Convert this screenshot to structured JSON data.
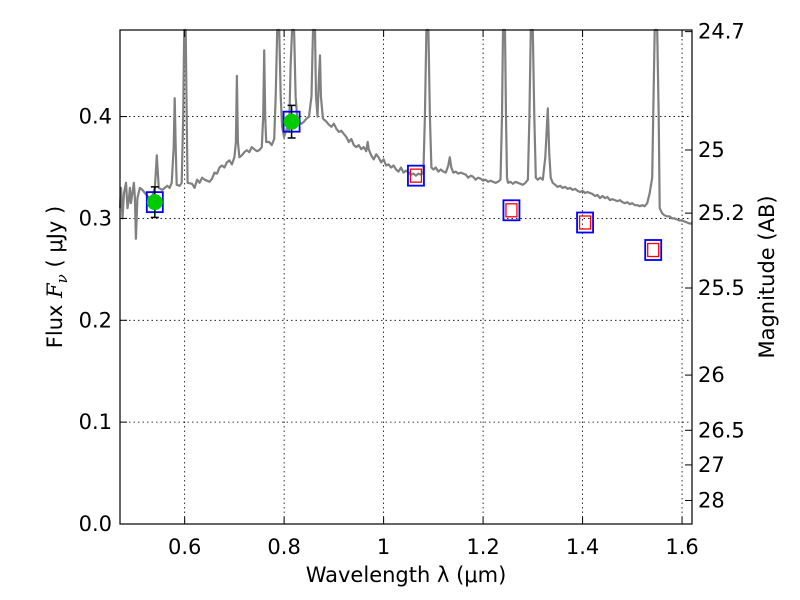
{
  "chart_data": {
    "type": "scatter",
    "title": "",
    "xlabel": "Wavelength  λ (μm)",
    "ylabel": "Flux  F_ν  ( μJy )",
    "ylabel_right": "Magnitude (AB)",
    "xlim": [
      0.47,
      1.62
    ],
    "ylim": [
      0.0,
      0.485
    ],
    "grid": true,
    "x_ticks": [
      {
        "v": 0.6,
        "label": "0.6"
      },
      {
        "v": 0.8,
        "label": "0.8"
      },
      {
        "v": 1.0,
        "label": "1"
      },
      {
        "v": 1.2,
        "label": "1.2"
      },
      {
        "v": 1.4,
        "label": "1.4"
      },
      {
        "v": 1.6,
        "label": "1.6"
      }
    ],
    "y_ticks": [
      {
        "v": 0.0,
        "label": "0.0"
      },
      {
        "v": 0.1,
        "label": "0.1"
      },
      {
        "v": 0.2,
        "label": "0.2"
      },
      {
        "v": 0.3,
        "label": "0.3"
      },
      {
        "v": 0.4,
        "label": "0.4"
      }
    ],
    "y2_ticks": [
      {
        "label": "24.7",
        "flux": 0.4834
      },
      {
        "label": "25",
        "flux": 0.3672
      },
      {
        "label": "25.2",
        "flux": 0.3052
      },
      {
        "label": "25.5",
        "flux": 0.2317
      },
      {
        "label": "26",
        "flux": 0.1462
      },
      {
        "label": "26.5",
        "flux": 0.092
      },
      {
        "label": "27",
        "flux": 0.058
      },
      {
        "label": "28",
        "flux": 0.0231
      }
    ],
    "series": [
      {
        "kind": "line",
        "color": "#808080",
        "points": [
          [
            0.47,
            0.31
          ],
          [
            0.472,
            0.33
          ],
          [
            0.475,
            0.3
          ],
          [
            0.478,
            0.325
          ],
          [
            0.482,
            0.335
          ],
          [
            0.485,
            0.31
          ],
          [
            0.488,
            0.32
          ],
          [
            0.49,
            0.33
          ],
          [
            0.492,
            0.315
          ],
          [
            0.495,
            0.325
          ],
          [
            0.498,
            0.335
          ],
          [
            0.5,
            0.32
          ],
          [
            0.502,
            0.28
          ],
          [
            0.505,
            0.32
          ],
          [
            0.51,
            0.33
          ],
          [
            0.515,
            0.328
          ],
          [
            0.52,
            0.325
          ],
          [
            0.525,
            0.322
          ],
          [
            0.53,
            0.32
          ],
          [
            0.535,
            0.322
          ],
          [
            0.54,
            0.33
          ],
          [
            0.542,
            0.345
          ],
          [
            0.544,
            0.362
          ],
          [
            0.546,
            0.345
          ],
          [
            0.548,
            0.33
          ],
          [
            0.555,
            0.328
          ],
          [
            0.56,
            0.33
          ],
          [
            0.565,
            0.332
          ],
          [
            0.57,
            0.33
          ],
          [
            0.574,
            0.335
          ],
          [
            0.578,
            0.37
          ],
          [
            0.58,
            0.418
          ],
          [
            0.582,
            0.37
          ],
          [
            0.584,
            0.333
          ],
          [
            0.59,
            0.332
          ],
          [
            0.594,
            0.335
          ],
          [
            0.597,
            0.4
          ],
          [
            0.599,
            0.485
          ],
          [
            0.602,
            0.485
          ],
          [
            0.604,
            0.4
          ],
          [
            0.606,
            0.335
          ],
          [
            0.615,
            0.334
          ],
          [
            0.62,
            0.33
          ],
          [
            0.625,
            0.338
          ],
          [
            0.63,
            0.335
          ],
          [
            0.635,
            0.34
          ],
          [
            0.64,
            0.338
          ],
          [
            0.645,
            0.337
          ],
          [
            0.65,
            0.336
          ],
          [
            0.655,
            0.339
          ],
          [
            0.66,
            0.345
          ],
          [
            0.665,
            0.344
          ],
          [
            0.67,
            0.35
          ],
          [
            0.675,
            0.352
          ],
          [
            0.68,
            0.35
          ],
          [
            0.685,
            0.355
          ],
          [
            0.69,
            0.357
          ],
          [
            0.695,
            0.353
          ],
          [
            0.7,
            0.36
          ],
          [
            0.703,
            0.375
          ],
          [
            0.705,
            0.44
          ],
          [
            0.707,
            0.375
          ],
          [
            0.71,
            0.36
          ],
          [
            0.715,
            0.362
          ],
          [
            0.72,
            0.365
          ],
          [
            0.725,
            0.367
          ],
          [
            0.73,
            0.365
          ],
          [
            0.735,
            0.37
          ],
          [
            0.74,
            0.368
          ],
          [
            0.745,
            0.366
          ],
          [
            0.75,
            0.367
          ],
          [
            0.755,
            0.37
          ],
          [
            0.758,
            0.4
          ],
          [
            0.76,
            0.465
          ],
          [
            0.762,
            0.4
          ],
          [
            0.764,
            0.375
          ],
          [
            0.77,
            0.375
          ],
          [
            0.775,
            0.372
          ],
          [
            0.78,
            0.378
          ],
          [
            0.783,
            0.42
          ],
          [
            0.786,
            0.485
          ],
          [
            0.79,
            0.485
          ],
          [
            0.793,
            0.42
          ],
          [
            0.796,
            0.39
          ],
          [
            0.8,
            0.38
          ],
          [
            0.805,
            0.388
          ],
          [
            0.81,
            0.385
          ],
          [
            0.813,
            0.45
          ],
          [
            0.816,
            0.485
          ],
          [
            0.82,
            0.485
          ],
          [
            0.823,
            0.42
          ],
          [
            0.826,
            0.4
          ],
          [
            0.83,
            0.395
          ],
          [
            0.835,
            0.393
          ],
          [
            0.84,
            0.395
          ],
          [
            0.845,
            0.398
          ],
          [
            0.85,
            0.4
          ],
          [
            0.855,
            0.42
          ],
          [
            0.858,
            0.485
          ],
          [
            0.862,
            0.485
          ],
          [
            0.864,
            0.42
          ],
          [
            0.867,
            0.4
          ],
          [
            0.87,
            0.44
          ],
          [
            0.872,
            0.46
          ],
          [
            0.874,
            0.42
          ],
          [
            0.878,
            0.398
          ],
          [
            0.885,
            0.395
          ],
          [
            0.89,
            0.392
          ],
          [
            0.895,
            0.39
          ],
          [
            0.9,
            0.393
          ],
          [
            0.905,
            0.388
          ],
          [
            0.91,
            0.385
          ],
          [
            0.915,
            0.386
          ],
          [
            0.92,
            0.383
          ],
          [
            0.925,
            0.38
          ],
          [
            0.93,
            0.375
          ],
          [
            0.935,
            0.378
          ],
          [
            0.94,
            0.372
          ],
          [
            0.945,
            0.37
          ],
          [
            0.95,
            0.372
          ],
          [
            0.955,
            0.368
          ],
          [
            0.96,
            0.37
          ],
          [
            0.965,
            0.366
          ],
          [
            0.968,
            0.375
          ],
          [
            0.97,
            0.368
          ],
          [
            0.975,
            0.362
          ],
          [
            0.98,
            0.358
          ],
          [
            0.985,
            0.363
          ],
          [
            0.99,
            0.36
          ],
          [
            0.995,
            0.355
          ],
          [
            1.0,
            0.358
          ],
          [
            1.005,
            0.352
          ],
          [
            1.01,
            0.353
          ],
          [
            1.015,
            0.35
          ],
          [
            1.02,
            0.352
          ],
          [
            1.025,
            0.348
          ],
          [
            1.03,
            0.346
          ],
          [
            1.035,
            0.35
          ],
          [
            1.04,
            0.345
          ],
          [
            1.045,
            0.347
          ],
          [
            1.05,
            0.345
          ],
          [
            1.055,
            0.343
          ],
          [
            1.06,
            0.344
          ],
          [
            1.065,
            0.342
          ],
          [
            1.07,
            0.344
          ],
          [
            1.075,
            0.343
          ],
          [
            1.08,
            0.345
          ],
          [
            1.083,
            0.4
          ],
          [
            1.086,
            0.485
          ],
          [
            1.09,
            0.485
          ],
          [
            1.093,
            0.4
          ],
          [
            1.096,
            0.35
          ],
          [
            1.1,
            0.348
          ],
          [
            1.105,
            0.35
          ],
          [
            1.11,
            0.346
          ],
          [
            1.115,
            0.348
          ],
          [
            1.12,
            0.346
          ],
          [
            1.125,
            0.345
          ],
          [
            1.13,
            0.352
          ],
          [
            1.133,
            0.36
          ],
          [
            1.136,
            0.35
          ],
          [
            1.14,
            0.345
          ],
          [
            1.145,
            0.346
          ],
          [
            1.15,
            0.344
          ],
          [
            1.155,
            0.345
          ],
          [
            1.16,
            0.344
          ],
          [
            1.165,
            0.343
          ],
          [
            1.17,
            0.34
          ],
          [
            1.175,
            0.342
          ],
          [
            1.18,
            0.341
          ],
          [
            1.185,
            0.338
          ],
          [
            1.19,
            0.34
          ],
          [
            1.195,
            0.339
          ],
          [
            1.2,
            0.337
          ],
          [
            1.205,
            0.338
          ],
          [
            1.21,
            0.336
          ],
          [
            1.215,
            0.337
          ],
          [
            1.22,
            0.336
          ],
          [
            1.225,
            0.335
          ],
          [
            1.23,
            0.336
          ],
          [
            1.235,
            0.338
          ],
          [
            1.238,
            0.4
          ],
          [
            1.24,
            0.485
          ],
          [
            1.244,
            0.485
          ],
          [
            1.246,
            0.4
          ],
          [
            1.248,
            0.34
          ],
          [
            1.25,
            0.335
          ],
          [
            1.255,
            0.336
          ],
          [
            1.26,
            0.334
          ],
          [
            1.265,
            0.336
          ],
          [
            1.27,
            0.335
          ],
          [
            1.275,
            0.334
          ],
          [
            1.28,
            0.333
          ],
          [
            1.285,
            0.335
          ],
          [
            1.29,
            0.338
          ],
          [
            1.293,
            0.4
          ],
          [
            1.296,
            0.485
          ],
          [
            1.3,
            0.485
          ],
          [
            1.303,
            0.4
          ],
          [
            1.306,
            0.34
          ],
          [
            1.31,
            0.338
          ],
          [
            1.315,
            0.34
          ],
          [
            1.32,
            0.338
          ],
          [
            1.325,
            0.36
          ],
          [
            1.33,
            0.408
          ],
          [
            1.333,
            0.365
          ],
          [
            1.336,
            0.34
          ],
          [
            1.34,
            0.335
          ],
          [
            1.345,
            0.333
          ],
          [
            1.35,
            0.331
          ],
          [
            1.355,
            0.332
          ],
          [
            1.36,
            0.33
          ],
          [
            1.365,
            0.331
          ],
          [
            1.37,
            0.329
          ],
          [
            1.375,
            0.33
          ],
          [
            1.38,
            0.328
          ],
          [
            1.385,
            0.329
          ],
          [
            1.39,
            0.327
          ],
          [
            1.395,
            0.326
          ],
          [
            1.4,
            0.327
          ],
          [
            1.405,
            0.325
          ],
          [
            1.41,
            0.326
          ],
          [
            1.415,
            0.325
          ],
          [
            1.42,
            0.324
          ],
          [
            1.425,
            0.322
          ],
          [
            1.43,
            0.323
          ],
          [
            1.435,
            0.32
          ],
          [
            1.44,
            0.322
          ],
          [
            1.445,
            0.32
          ],
          [
            1.45,
            0.321
          ],
          [
            1.455,
            0.318
          ],
          [
            1.46,
            0.319
          ],
          [
            1.465,
            0.318
          ],
          [
            1.47,
            0.317
          ],
          [
            1.475,
            0.318
          ],
          [
            1.48,
            0.316
          ],
          [
            1.485,
            0.315
          ],
          [
            1.49,
            0.316
          ],
          [
            1.495,
            0.314
          ],
          [
            1.5,
            0.315
          ],
          [
            1.505,
            0.313
          ],
          [
            1.51,
            0.313
          ],
          [
            1.515,
            0.312
          ],
          [
            1.52,
            0.313
          ],
          [
            1.525,
            0.312
          ],
          [
            1.53,
            0.315
          ],
          [
            1.535,
            0.325
          ],
          [
            1.54,
            0.34
          ],
          [
            1.542,
            0.4
          ],
          [
            1.545,
            0.485
          ],
          [
            1.55,
            0.485
          ],
          [
            1.553,
            0.4
          ],
          [
            1.555,
            0.31
          ],
          [
            1.56,
            0.305
          ],
          [
            1.565,
            0.303
          ],
          [
            1.57,
            0.302
          ],
          [
            1.575,
            0.302
          ],
          [
            1.58,
            0.3
          ],
          [
            1.585,
            0.3
          ],
          [
            1.59,
            0.299
          ],
          [
            1.595,
            0.298
          ],
          [
            1.6,
            0.298
          ],
          [
            1.605,
            0.297
          ],
          [
            1.61,
            0.296
          ],
          [
            1.615,
            0.295
          ],
          [
            1.62,
            0.295
          ]
        ]
      },
      {
        "kind": "model_boxes",
        "edge_color": "#0000ff",
        "points": [
          {
            "x": 0.54,
            "y": 0.316
          },
          {
            "x": 0.815,
            "y": 0.395
          }
        ]
      },
      {
        "kind": "model_boxes_double",
        "outer_color": "#0000ff",
        "inner_color": "#ff0000",
        "points": [
          {
            "x": 1.065,
            "y": 0.342
          },
          {
            "x": 1.257,
            "y": 0.308
          },
          {
            "x": 1.405,
            "y": 0.296
          },
          {
            "x": 1.542,
            "y": 0.269
          }
        ]
      },
      {
        "kind": "observed",
        "color": "#00cc00",
        "points": [
          {
            "x": 0.54,
            "y": 0.316,
            "err": 0.015
          },
          {
            "x": 0.815,
            "y": 0.395,
            "err": 0.016
          }
        ]
      }
    ]
  }
}
